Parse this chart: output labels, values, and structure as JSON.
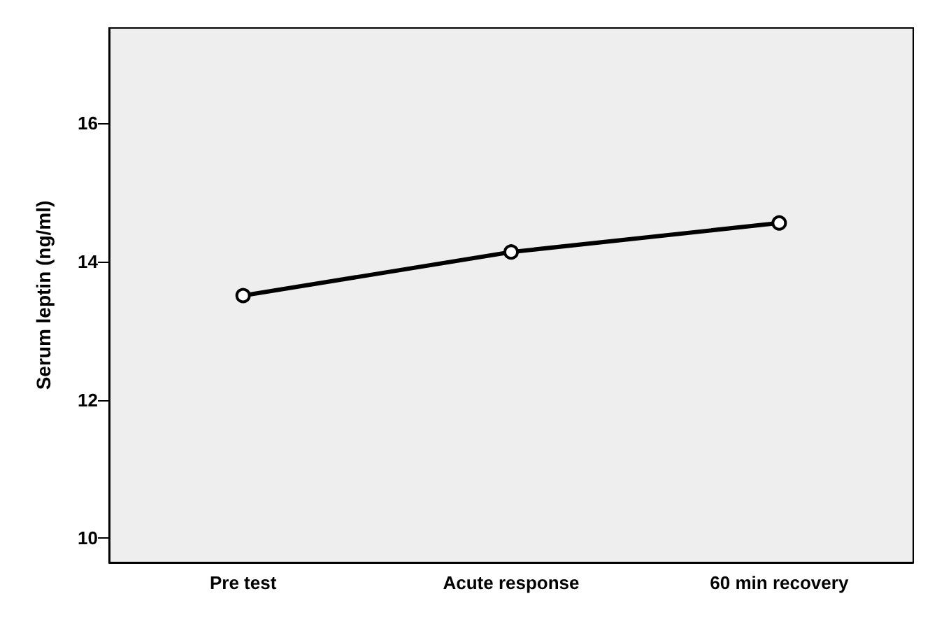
{
  "chart_data": {
    "type": "line",
    "ylabel": "Serum leptin (ng/ml)",
    "categories": [
      "Pre test",
      "Acute response",
      "60 min recovery"
    ],
    "series": [
      {
        "color": "#000000",
        "values": [
          13.51,
          14.14,
          14.56
        ]
      }
    ],
    "ylim": [
      9.65,
      17.38
    ],
    "yticks": [
      10,
      12,
      14,
      16
    ],
    "grid": false,
    "marker": "circle",
    "line_style": "solid"
  }
}
